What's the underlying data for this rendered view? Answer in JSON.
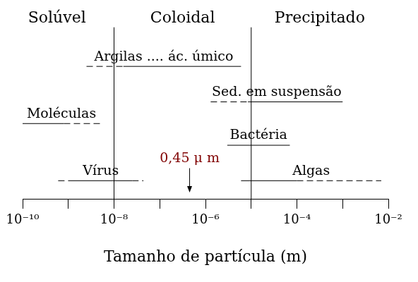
{
  "chart_data": {
    "type": "range",
    "x_label": "Tamanho de partícula (m)",
    "log": "x",
    "grid": false,
    "tick_labels": "x",
    "color": "#000000",
    "xlim": [
      1e-10,
      0.01
    ],
    "xticks": [
      {
        "value": 1e-10,
        "label": "10⁻¹⁰"
      },
      {
        "value": 1e-08,
        "label": "10⁻⁸"
      },
      {
        "value": 1e-06,
        "label": "10⁻⁶"
      },
      {
        "value": 0.0001,
        "label": "10⁻⁴"
      },
      {
        "value": 0.01,
        "label": "10⁻²"
      }
    ],
    "minor_xticks": [
      1e-09,
      1e-07,
      1e-05,
      0.001
    ],
    "regions": {
      "labels": [
        "Solúvel",
        "Coloidal",
        "Precipitado"
      ],
      "boundaries": [
        1e-08,
        1e-05
      ]
    },
    "rows": [
      [
        {
          "name": "Argilas .... ác. úmico",
          "segments": [
            {
              "range": [
                2.5e-09,
                1.6e-08
              ],
              "line_style": "dashed"
            },
            {
              "range": [
                1.6e-08,
                6e-06
              ],
              "line_style": "solid"
            }
          ]
        }
      ],
      [
        {
          "name": "Sed. em suspensão",
          "segments": [
            {
              "range": [
                1.3e-06,
                8.5e-06
              ],
              "line_style": "dashed"
            },
            {
              "range": [
                8.5e-06,
                0.001
              ],
              "line_style": "solid"
            }
          ]
        }
      ],
      [
        {
          "name": "Moléculas",
          "segments": [
            {
              "range": [
                1e-10,
                8e-10
              ],
              "line_style": "solid"
            },
            {
              "range": [
                8e-10,
                5e-09
              ],
              "line_style": "dashed"
            }
          ]
        }
      ],
      [
        {
          "name": "Bactéria",
          "segments": [
            {
              "range": [
                3e-06,
                7e-05
              ],
              "line_style": "solid"
            }
          ]
        }
      ],
      [
        {
          "name": "Vírus",
          "segments": [
            {
              "range": [
                6e-10,
                1e-09
              ],
              "line_style": "dashed"
            },
            {
              "range": [
                1e-09,
                2.5e-08
              ],
              "line_style": "solid"
            },
            {
              "range": [
                2.5e-08,
                4.4e-08
              ],
              "line_style": "dashed"
            }
          ]
        },
        {
          "name": "Algas",
          "segments": [
            {
              "range": [
                6e-06,
                0.0001
              ],
              "line_style": "solid"
            },
            {
              "range": [
                0.0001,
                0.007
              ],
              "line_style": "dashed"
            }
          ]
        }
      ]
    ],
    "marker_line": {
      "label": "0,45 μ m",
      "value": 4.5e-07,
      "color": "#800000"
    }
  }
}
